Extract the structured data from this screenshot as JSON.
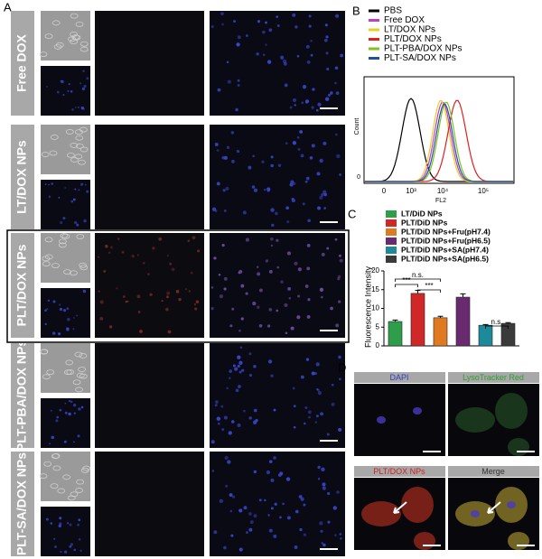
{
  "panel_a": {
    "label": "A",
    "rows": [
      "Free DOX",
      "LT/DOX NPs",
      "PLT/DOX NPs",
      "PLT-PBA/DOX NPs",
      "PLT-SA/DOX NPs"
    ]
  },
  "panel_b": {
    "label": "B",
    "legend": [
      {
        "name": "PBS",
        "color": "#000000"
      },
      {
        "name": "Free DOX",
        "color": "#c040c0"
      },
      {
        "name": "LT/DOX NPs",
        "color": "#e8d020"
      },
      {
        "name": "PLT/DOX NPs",
        "color": "#e02020"
      },
      {
        "name": "PLT-PBA/DOX NPs",
        "color": "#80c020"
      },
      {
        "name": "PLT-SA/DOX NPs",
        "color": "#2050a0"
      }
    ],
    "y_label": "Count",
    "x_label": "FL2",
    "y_tick": "0",
    "x_ticks": [
      "0",
      "10³",
      "10⁴",
      "10⁵"
    ]
  },
  "chart_data": {
    "type": "bar",
    "panel_label": "C",
    "y_label": "Fluorescence Intensity",
    "categories": [
      "LT/DiD NPs",
      "PLT/DiD NPs",
      "PLT/DiD NPs+Fru(pH7.4)",
      "PLT/DiD NPs+Fru(pH6.5)",
      "PLT/DiD NPs+SA(pH7.4)",
      "PLT/DiD NPs+SA(pH6.5)"
    ],
    "colors": [
      "#2e9e4a",
      "#d02828",
      "#e07a20",
      "#6a2a70",
      "#1c8a9a",
      "#3a3a3a"
    ],
    "values": [
      6.5,
      14,
      7.5,
      13,
      5.5,
      6
    ],
    "errors": [
      0.4,
      0.8,
      0.4,
      0.9,
      0.2,
      0.2
    ],
    "ylim": [
      0,
      20
    ],
    "yticks": [
      0,
      5,
      10,
      15,
      20
    ],
    "annotations": [
      "***",
      "n.s.",
      "***",
      "n.s."
    ]
  },
  "panel_d": {
    "label": "D",
    "panels": [
      "DAPI",
      "LysoTracker Red",
      "PLT/DOX NPs",
      "Merge"
    ]
  }
}
